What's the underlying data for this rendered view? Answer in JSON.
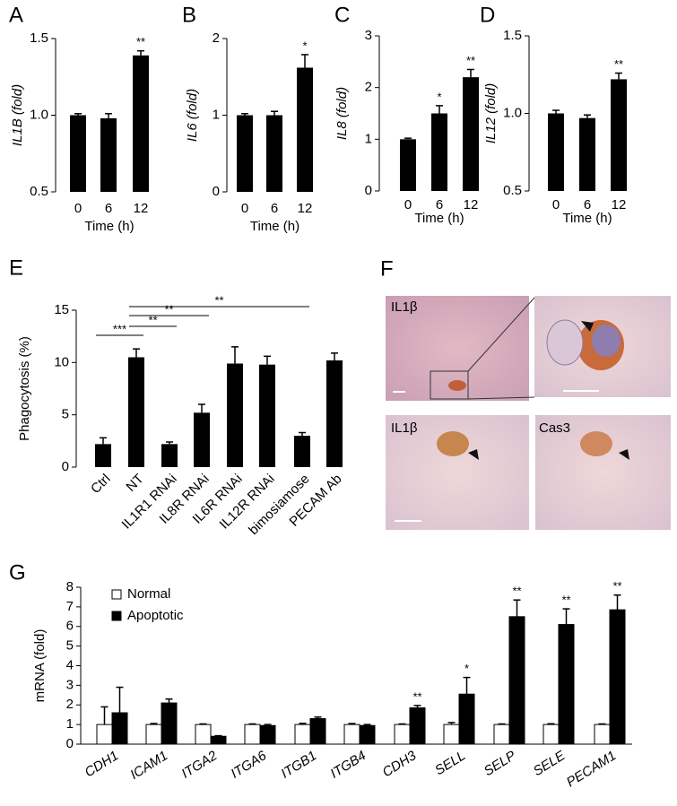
{
  "chart_data": [
    {
      "type": "bar",
      "panel_label": "A",
      "ylabel": "IL1B (fold)",
      "xlabel": "Time (h)",
      "categories": [
        "0",
        "6",
        "12"
      ],
      "values": [
        1.0,
        0.98,
        1.39
      ],
      "errors": [
        0.01,
        0.03,
        0.03
      ],
      "significance": [
        null,
        null,
        "**"
      ],
      "color": "#000000",
      "ylim": [
        0.5,
        1.5
      ],
      "yticks": [
        0.5,
        {
          "value": 1.0,
          "label": "1.0"
        },
        1.5
      ]
    },
    {
      "type": "bar",
      "panel_label": "B",
      "ylabel": "IL6 (fold)",
      "xlabel": "Time (h)",
      "categories": [
        "0",
        "6",
        "12"
      ],
      "values": [
        1.0,
        1.0,
        1.62
      ],
      "errors": [
        0.02,
        0.05,
        0.17
      ],
      "significance": [
        null,
        null,
        "*"
      ],
      "color": "#000000",
      "ylim": [
        0,
        2
      ],
      "yticks": [
        0,
        1,
        2
      ]
    },
    {
      "type": "bar",
      "panel_label": "C",
      "ylabel": "IL8 (fold)",
      "xlabel": "Time (h)",
      "categories": [
        "0",
        "6",
        "12"
      ],
      "values": [
        1.0,
        1.5,
        2.2
      ],
      "errors": [
        0.02,
        0.15,
        0.15
      ],
      "significance": [
        null,
        "*",
        "**"
      ],
      "color": "#000000",
      "ylim": [
        0,
        3
      ],
      "yticks": [
        0,
        1,
        2,
        3
      ]
    },
    {
      "type": "bar",
      "panel_label": "D",
      "ylabel": "IL12 (fold)",
      "xlabel": "Time (h)",
      "categories": [
        "0",
        "6",
        "12"
      ],
      "values": [
        1.0,
        0.97,
        1.22
      ],
      "errors": [
        0.02,
        0.02,
        0.04
      ],
      "significance": [
        null,
        null,
        "**"
      ],
      "color": "#000000",
      "ylim": [
        0.5,
        1.5
      ],
      "yticks": [
        0.5,
        {
          "value": 1.0,
          "label": "1.0"
        },
        1.5
      ]
    },
    {
      "type": "bar",
      "panel_label": "E",
      "ylabel": "Phagocytosis (%)",
      "categories": [
        "Ctrl",
        "NT",
        "IL1R1 RNAi",
        "IL8R RNAi",
        "IL6R RNAi",
        "IL12R RNAi",
        "bimosiamose",
        "PECAM Ab"
      ],
      "values": [
        2.2,
        10.5,
        2.2,
        5.2,
        9.9,
        9.8,
        3.0,
        10.2
      ],
      "errors": [
        0.6,
        0.8,
        0.2,
        0.8,
        1.6,
        0.8,
        0.3,
        0.7
      ],
      "color": "#000000",
      "ylim": [
        0,
        15
      ],
      "yticks": [
        0,
        5,
        10,
        15
      ],
      "comparisons": [
        {
          "from": 0,
          "to": 1,
          "label": "***"
        },
        {
          "from": 1,
          "to": 2,
          "label": "**"
        },
        {
          "from": 1,
          "to": 3,
          "label": "**"
        },
        {
          "from": 1,
          "to": 6,
          "label": "**"
        }
      ]
    },
    {
      "type": "grouped_bar",
      "panel_label": "G",
      "ylabel": "mRNA (fold)",
      "categories": [
        "CDH1",
        "ICAM1",
        "ITGA2",
        "ITGA6",
        "ITGB1",
        "ITGB4",
        "CDH3",
        "SELL",
        "SELP",
        "SELE",
        "PECAM1"
      ],
      "series": [
        {
          "name": "Normal",
          "color": "#ffffff",
          "values": [
            1.0,
            1.0,
            1.0,
            1.0,
            1.0,
            1.0,
            1.0,
            1.0,
            1.0,
            1.0,
            1.0
          ],
          "errors": [
            0.9,
            0.05,
            0.03,
            0.03,
            0.06,
            0.05,
            0.03,
            0.1,
            0.03,
            0.04,
            0.03
          ],
          "significance": [
            null,
            null,
            null,
            null,
            null,
            null,
            null,
            null,
            null,
            null,
            null
          ]
        },
        {
          "name": "Apoptotic",
          "color": "#000000",
          "values": [
            1.6,
            2.1,
            0.4,
            0.95,
            1.3,
            0.95,
            1.85,
            2.55,
            6.5,
            6.1,
            6.85
          ],
          "errors": [
            1.3,
            0.2,
            0.03,
            0.05,
            0.08,
            0.05,
            0.12,
            0.85,
            0.85,
            0.8,
            0.75
          ],
          "significance": [
            null,
            null,
            null,
            null,
            null,
            null,
            "**",
            "*",
            "**",
            "**",
            "**"
          ]
        }
      ],
      "ylim": [
        0,
        8
      ],
      "yticks": [
        0,
        1,
        2,
        3,
        4,
        5,
        6,
        7,
        8
      ],
      "legend": "upper left"
    }
  ],
  "micrographs": {
    "panel_label": "F",
    "labels": [
      "IL1β",
      "IL1β",
      "Cas3"
    ]
  }
}
